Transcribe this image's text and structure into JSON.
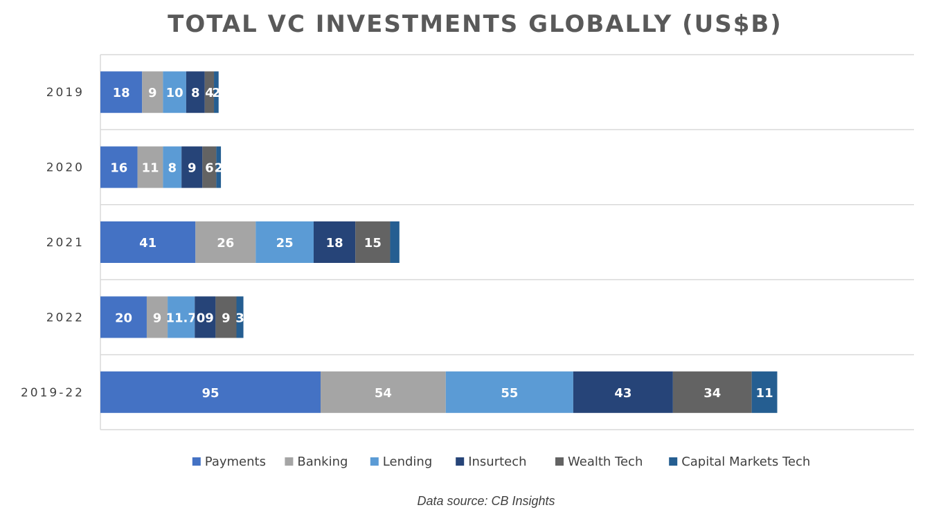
{
  "chart_data": {
    "type": "bar",
    "orientation": "horizontal",
    "stacked": true,
    "title": "TOTAL VC INVESTMENTS GLOBALLY (US$B)",
    "categories": [
      "2019",
      "2020",
      "2021",
      "2022",
      "2019-22"
    ],
    "series": [
      {
        "name": "Payments",
        "color": "#4472C4",
        "values": [
          18,
          16,
          41,
          20,
          95
        ],
        "labels": [
          "18",
          "16",
          "41",
          "20",
          "95"
        ]
      },
      {
        "name": "Banking",
        "color": "#A5A5A5",
        "values": [
          9,
          11,
          26,
          9,
          54
        ],
        "labels": [
          "9",
          "11",
          "26",
          "9",
          "54"
        ]
      },
      {
        "name": "Lending",
        "color": "#5B9BD5",
        "values": [
          10,
          8,
          25,
          11.7,
          55
        ],
        "labels": [
          "10",
          "8",
          "25",
          "11.7",
          "55"
        ]
      },
      {
        "name": "Insurtech",
        "color": "#264478",
        "values": [
          8,
          9,
          18,
          9,
          43
        ],
        "labels": [
          "8",
          "9",
          "18",
          "09",
          "43"
        ]
      },
      {
        "name": "Wealth Tech",
        "color": "#636363",
        "values": [
          4,
          6,
          15,
          9,
          34
        ],
        "labels": [
          "4",
          "6",
          "15",
          "9",
          "34"
        ]
      },
      {
        "name": "Capital Markets Tech",
        "color": "#255E91",
        "values": [
          2,
          2,
          4,
          3,
          11
        ],
        "labels": [
          "2",
          "2",
          "",
          "3",
          "11"
        ]
      }
    ],
    "xlim": [
      0,
      351
    ],
    "grid": true,
    "legend": "bottom",
    "source": "Data source: CB Insights"
  }
}
